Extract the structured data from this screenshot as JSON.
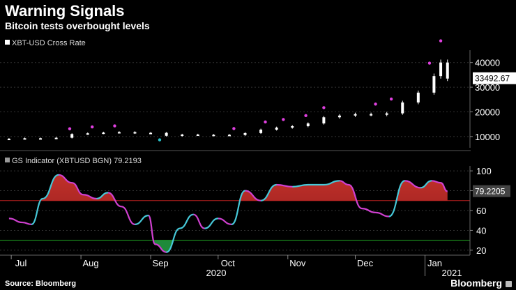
{
  "header": {
    "title": "Warning Signals",
    "subtitle": "Bitcoin tests overbought levels"
  },
  "footer": {
    "source": "Source: Bloomberg",
    "brand": "Bloomberg"
  },
  "colors": {
    "background": "#000000",
    "price_candle": "#ffffff",
    "signal_marker_overbought": "#e040e0",
    "signal_marker_oversold": "#29c0c8",
    "indicator_line_up": "#46c8d8",
    "indicator_line_down": "#d040d0",
    "overbought_fill": "#8b1a1a",
    "oversold_fill": "#1f8a3a",
    "overbought_line": "#c02020",
    "oversold_line": "#22aa22",
    "grid": "#333333"
  },
  "chart_data": [
    {
      "type": "line",
      "subtype": "candlestick",
      "legend": "XBT-USD Cross Rate",
      "y_ticks": [
        10000,
        20000,
        30000,
        40000
      ],
      "ylim": [
        6000,
        45000
      ],
      "last_value_label": "33492.67",
      "x_ticks": [
        "Jul",
        "Aug",
        "Sep",
        "Oct",
        "Nov",
        "Dec",
        "Jan"
      ],
      "year_labels": [
        "2020",
        "2021"
      ],
      "series": [
        {
          "name": "XBT-USD Cross Rate",
          "x": [
            "2020-06-30",
            "2020-07-07",
            "2020-07-14",
            "2020-07-21",
            "2020-07-28",
            "2020-08-04",
            "2020-08-11",
            "2020-08-18",
            "2020-08-25",
            "2020-09-01",
            "2020-09-08",
            "2020-09-15",
            "2020-09-22",
            "2020-09-29",
            "2020-10-06",
            "2020-10-13",
            "2020-10-20",
            "2020-10-27",
            "2020-11-03",
            "2020-11-10",
            "2020-11-17",
            "2020-11-24",
            "2020-12-01",
            "2020-12-08",
            "2020-12-15",
            "2020-12-22",
            "2020-12-29",
            "2021-01-05",
            "2021-01-08",
            "2021-01-11"
          ],
          "values": [
            9100,
            9300,
            9200,
            9500,
            11000,
            11300,
            11600,
            11800,
            11400,
            11500,
            10300,
            10800,
            10600,
            10700,
            10600,
            11400,
            12800,
            13600,
            14200,
            15300,
            17800,
            18500,
            19100,
            18800,
            19400,
            23800,
            27800,
            34500,
            40000,
            33492.67
          ]
        }
      ],
      "signal_markers": {
        "overbought_dates": [
          "2020-07-27",
          "2020-08-06",
          "2020-08-16",
          "2020-10-08",
          "2020-10-22",
          "2020-10-30",
          "2020-11-09",
          "2020-11-17",
          "2020-12-10",
          "2020-12-17",
          "2021-01-03",
          "2021-01-08"
        ],
        "oversold_dates": [
          "2020-09-05"
        ]
      }
    },
    {
      "type": "line",
      "legend": "GS Indicator (XBTUSD BGN) 79.2193",
      "y_ticks": [
        20,
        40,
        60,
        80,
        100
      ],
      "ylim": [
        15,
        105
      ],
      "last_value_label": "79.2205",
      "overbought_threshold": 70,
      "oversold_threshold": 30,
      "series": [
        {
          "name": "GS Indicator (XBTUSD BGN)",
          "x": [
            "2020-06-30",
            "2020-07-06",
            "2020-07-10",
            "2020-07-15",
            "2020-07-22",
            "2020-07-28",
            "2020-08-02",
            "2020-08-08",
            "2020-08-13",
            "2020-08-19",
            "2020-08-25",
            "2020-08-31",
            "2020-09-03",
            "2020-09-08",
            "2020-09-14",
            "2020-09-20",
            "2020-09-25",
            "2020-10-01",
            "2020-10-07",
            "2020-10-13",
            "2020-10-20",
            "2020-10-27",
            "2020-11-03",
            "2020-11-10",
            "2020-11-17",
            "2020-11-24",
            "2020-11-28",
            "2020-12-04",
            "2020-12-10",
            "2020-12-16",
            "2020-12-23",
            "2020-12-30",
            "2021-01-04",
            "2021-01-08",
            "2021-01-11"
          ],
          "values": [
            52,
            48,
            46,
            72,
            96,
            88,
            76,
            72,
            78,
            64,
            46,
            55,
            26,
            18,
            42,
            56,
            42,
            52,
            46,
            80,
            70,
            86,
            84,
            86,
            86,
            90,
            86,
            62,
            58,
            54,
            90,
            83,
            90,
            88,
            79.22
          ]
        }
      ]
    }
  ]
}
